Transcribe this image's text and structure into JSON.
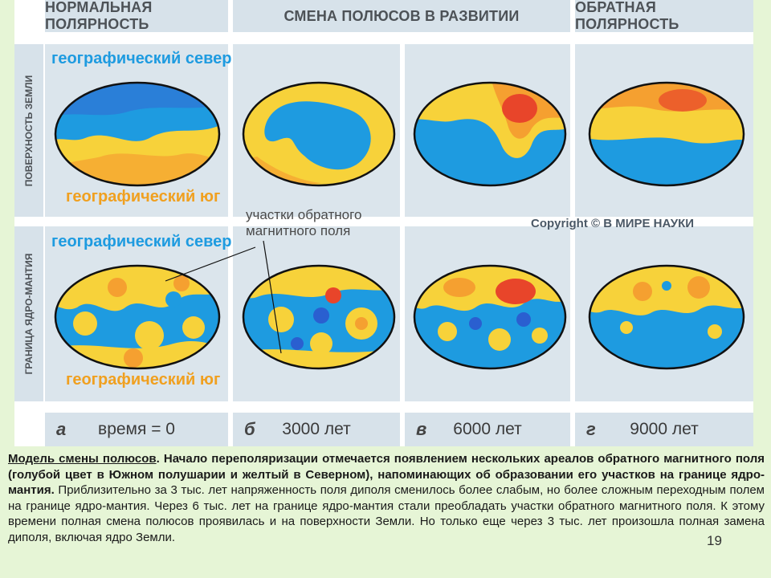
{
  "headers": {
    "normal": "НОРМАЛЬНАЯ ПОЛЯРНОСТЬ",
    "transition": "СМЕНА ПОЛЮСОВ В РАЗВИТИИ",
    "reverse": "ОБРАТНАЯ ПОЛЯРНОСТЬ"
  },
  "rows": {
    "surface": "ПОВЕРХНОСТЬ ЗЕМЛИ",
    "core_mantle": "ГРАНИЦА ЯДРО-МАНТИЯ"
  },
  "labels": {
    "north": "географический север",
    "south": "географический юг",
    "reverse_patches": "участки обратного магнитного поля",
    "copyright": "Copyright © В МИРЕ НАУКИ"
  },
  "timeline": [
    {
      "letter": "а",
      "value": "время = 0"
    },
    {
      "letter": "б",
      "value": "3000 лет"
    },
    {
      "letter": "в",
      "value": "6000 лет"
    },
    {
      "letter": "г",
      "value": "9000 лет"
    }
  ],
  "caption": {
    "lead": "Модель смены полюсов",
    "bold": ". Начало переполяризации отмечается появлением нескольких ареалов обратного магнитного поля (голубой цвет в Южном полушарии и желтый в Северном), напоминающих об образовании его участков на границе ядро-мантия.",
    "rest": " Приблизительно за 3 тыс. лет напряженность поля диполя сменилось более слабым, но более сложным переходным полем на границе ядро-мантия. Через 6 тыс. лет на границе ядро-мантия стали преобладать участки обратного магнитного поля. К этому времени полная смена полюсов проявилась и на поверхности Земли. Но только еще через 3 тыс. лет произошла полная замена диполя, включая ядро Земли."
  },
  "page_number": "19",
  "colors": {
    "blue": "#1e9be0",
    "yellow": "#f7d23a",
    "orange": "#f5a030",
    "red": "#e8452a"
  }
}
